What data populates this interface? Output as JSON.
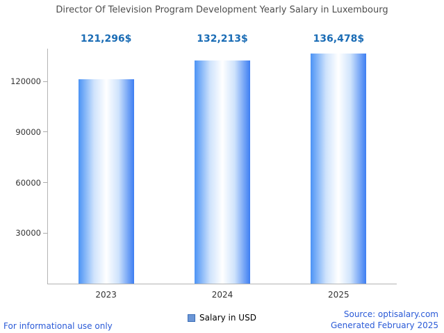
{
  "chart_data": {
    "type": "bar",
    "title": "Director Of Television Program Development Yearly Salary in Luxembourg",
    "categories": [
      "2023",
      "2024",
      "2025"
    ],
    "values": [
      121296,
      132213,
      136478
    ],
    "value_labels": [
      "121,296$",
      "132,213$",
      "136,478$"
    ],
    "series": [
      {
        "name": "Salary in USD",
        "values": [
          121296,
          132213,
          136478
        ]
      }
    ],
    "xlabel": "",
    "ylabel": "",
    "y_ticks": [
      30000,
      60000,
      90000,
      120000
    ],
    "ylim": [
      0,
      139400
    ],
    "axis_max": 139400,
    "grid": false,
    "legend": "Salary in USD",
    "legend_position": "bottom",
    "label_color": "#1a6cb5",
    "bar_gradient": [
      "#4b93f5",
      "#ffffff",
      "#3d7ef2"
    ]
  },
  "footer": {
    "disclaimer": "For informational use only",
    "source": "Source: optisalary.com",
    "generated": "Generated February 2025",
    "link_color": "#2a5ad7"
  }
}
